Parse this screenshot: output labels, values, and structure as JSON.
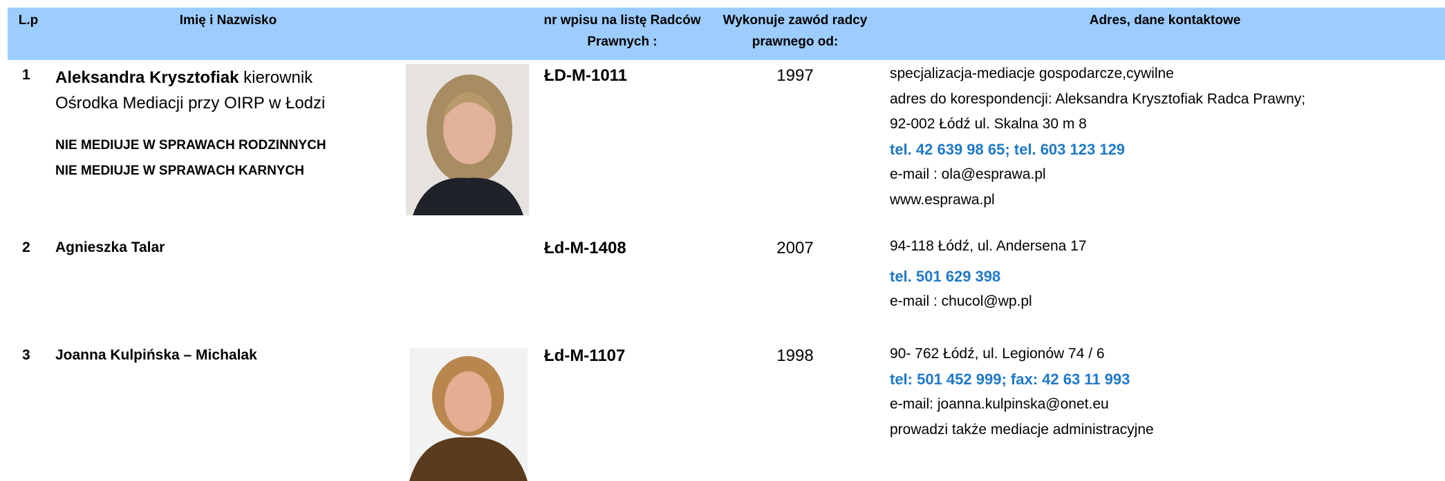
{
  "header": [
    "L.p",
    "Imię i Nazwisko",
    "nr wpisu na listę Radców Prawnych :",
    "Wykonuje zawód radcy prawnego od:",
    "Adres, dane kontaktowe"
  ],
  "rows": [
    {
      "lp": "1",
      "name": "Aleksandra Krysztofiak",
      "name_suffix": "kierownik Ośrodka Mediacji przy OIRP w Łodzi",
      "notes": [
        "NIE MEDIUJE W SPRAWACH RODZINNYCH",
        "NIE MEDIUJE W SPRAWACH KARNYCH"
      ],
      "nr": "ŁD-M-1011",
      "year": "1997",
      "address": [
        {
          "text": "specjalizacja-mediacje gospodarcze,cywilne"
        },
        {
          "text": "adres do korespondencji: Aleksandra Krysztofiak Radca Prawny;"
        },
        {
          "text": "92-002 Łódź ul. Skalna 30 m 8"
        },
        {
          "text": "tel. 42  639 98 65; tel. 603 123 129",
          "style": "phone"
        },
        {
          "text": "e-mail : ola@esprawa.pl"
        },
        {
          "text": "www.esprawa.pl"
        }
      ]
    },
    {
      "lp": "2",
      "name": "Agnieszka Talar",
      "nr": "Łd-M-1408",
      "year": "2007",
      "address": [
        {
          "text": "94-118 Łódź, ul. Andersena 17"
        },
        {
          "text": "tel.  501 629 398",
          "style": "phone"
        },
        {
          "text": "e-mail : chucol@wp.pl"
        }
      ]
    },
    {
      "lp": "3",
      "name": "Joanna Kulpińska – Michalak",
      "nr": "Łd-M-1107",
      "year": "1998",
      "address": [
        {
          "text": "90- 762 Łódź, ul. Legionów 74 / 6"
        },
        {
          "text": "tel: 501  452 999; fax: 42 63 11 993",
          "style": "phone"
        },
        {
          "text": "e-mail: joanna.kulpinska@onet.eu"
        },
        {
          "text": "prowadzi także mediacje administracyjne"
        }
      ]
    }
  ]
}
